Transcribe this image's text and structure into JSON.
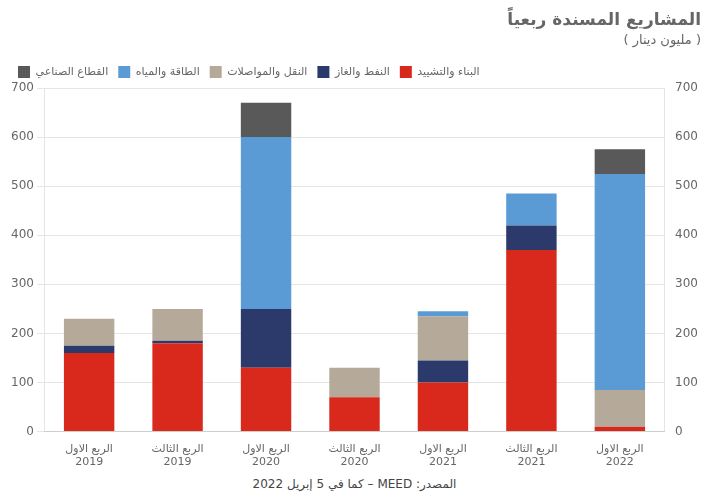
{
  "chart_data": {
    "type": "bar",
    "stacked": true,
    "title": "المشاريع المسندة ربعياً",
    "subtitle": "( مليون دينار )",
    "annotations": [
      "المصدر: MEED – كما في 5 إبريل 2022"
    ],
    "categories": [
      [
        "الربع الاول",
        "2019"
      ],
      [
        "الربع الثالث",
        "2019"
      ],
      [
        "الربع الاول",
        "2020"
      ],
      [
        "الربع الثالث",
        "2020"
      ],
      [
        "الربع الاول",
        "2021"
      ],
      [
        "الربع الثالث",
        "2021"
      ],
      [
        "الربع الاول",
        "2022"
      ]
    ],
    "series": [
      {
        "name": "البناء والتشييد",
        "color": "#d9291c",
        "values": [
          160,
          180,
          130,
          70,
          100,
          370,
          10
        ]
      },
      {
        "name": "النفط والغاز",
        "color": "#2b3a6b",
        "values": [
          15,
          5,
          120,
          0,
          45,
          50,
          0
        ]
      },
      {
        "name": "النقل والمواصلات",
        "color": "#b5a99a",
        "values": [
          55,
          65,
          0,
          60,
          90,
          0,
          75
        ]
      },
      {
        "name": "الطاقة والمياه",
        "color": "#5b9bd5",
        "values": [
          0,
          0,
          350,
          0,
          10,
          65,
          440
        ]
      },
      {
        "name": "القطاع الصناعي",
        "color": "#595959",
        "values": [
          0,
          0,
          70,
          0,
          0,
          0,
          50
        ]
      }
    ],
    "ylim": [
      0,
      700
    ],
    "yticks": [
      0,
      100,
      200,
      300,
      400,
      500,
      600,
      700
    ],
    "y2lim": [
      0,
      700
    ],
    "y2ticks": [
      0,
      100,
      200,
      300,
      400,
      500,
      600,
      700
    ],
    "grid": true,
    "legend": "upper left"
  }
}
